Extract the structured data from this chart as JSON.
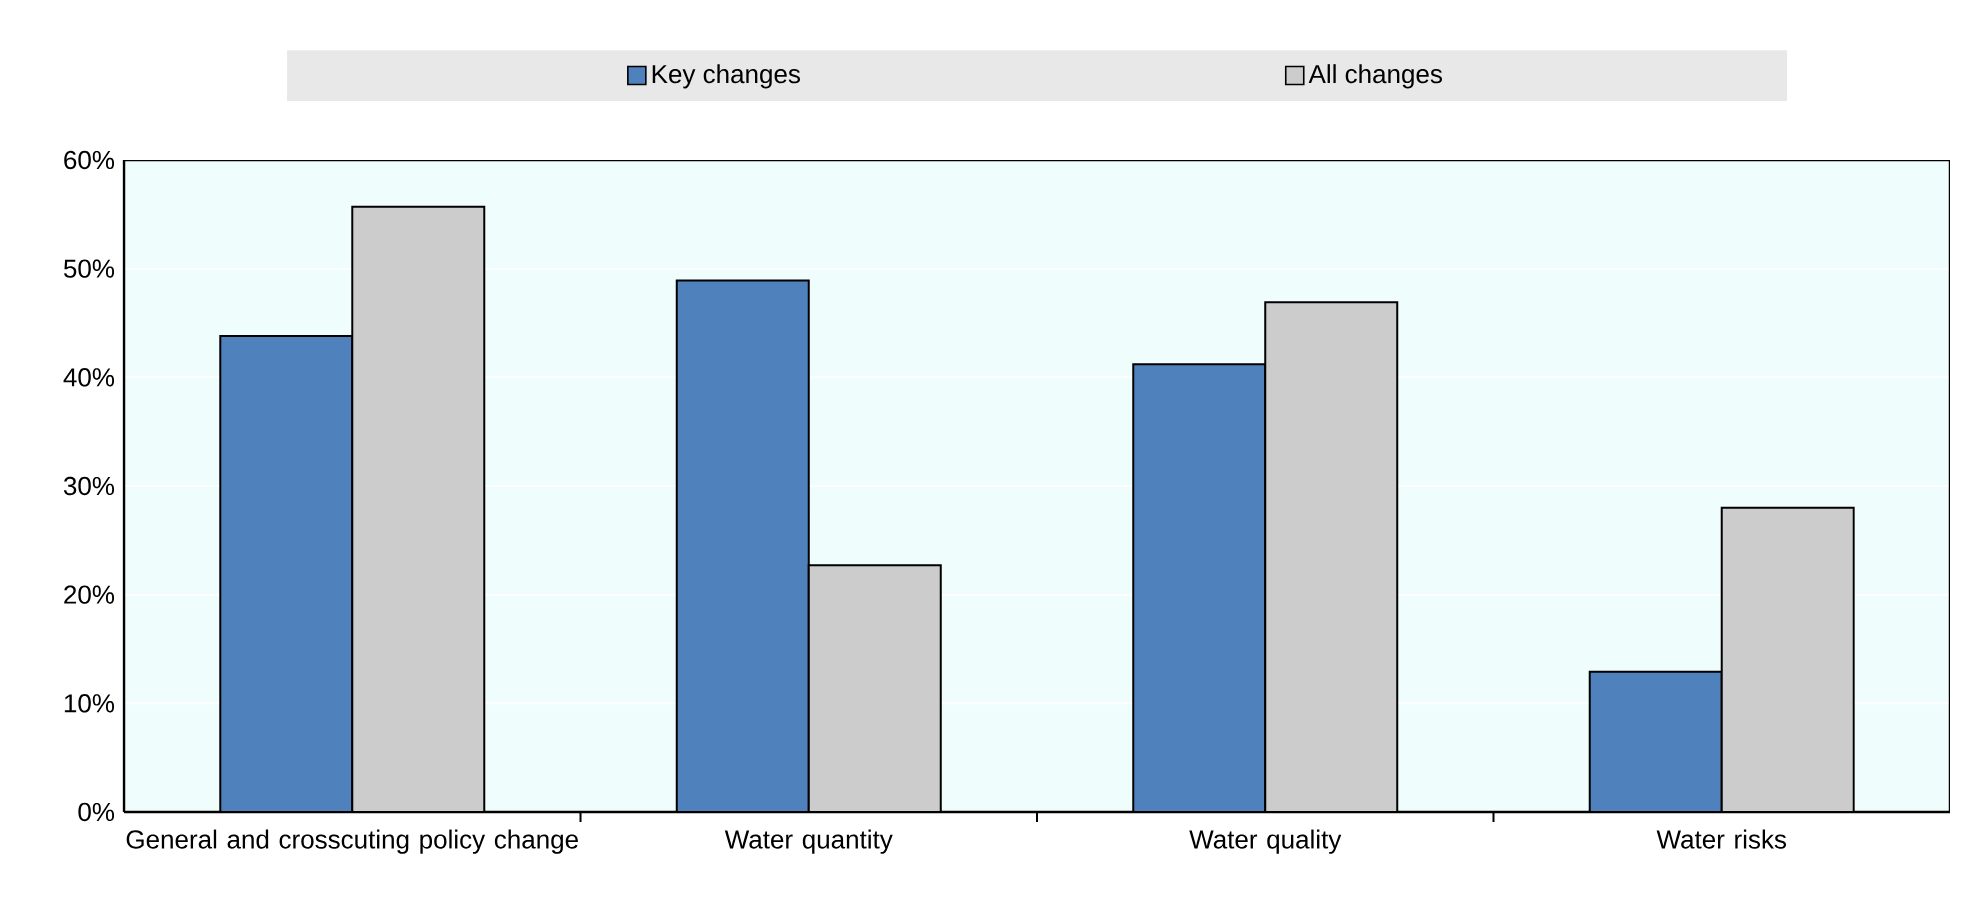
{
  "chart_data": {
    "type": "bar",
    "categories": [
      "General and crosscuting policy change",
      "Water quantity",
      "Water quality",
      "Water risks"
    ],
    "series": [
      {
        "name": "Key changes",
        "color": "#4f81bd",
        "values": [
          43.8,
          48.9,
          41.2,
          12.9
        ]
      },
      {
        "name": "All changes",
        "color": "#cccccc",
        "values": [
          55.7,
          22.7,
          46.9,
          28.0
        ]
      }
    ],
    "ylim": [
      0,
      60
    ],
    "yticks": [
      {
        "value": 0,
        "label": "0%"
      },
      {
        "value": 10,
        "label": "10%"
      },
      {
        "value": 20,
        "label": "20%"
      },
      {
        "value": 30,
        "label": "30%"
      },
      {
        "value": 40,
        "label": "40%"
      },
      {
        "value": 50,
        "label": "50%"
      },
      {
        "value": 60,
        "label": "60%"
      }
    ],
    "grid": "y",
    "legend": "top"
  }
}
